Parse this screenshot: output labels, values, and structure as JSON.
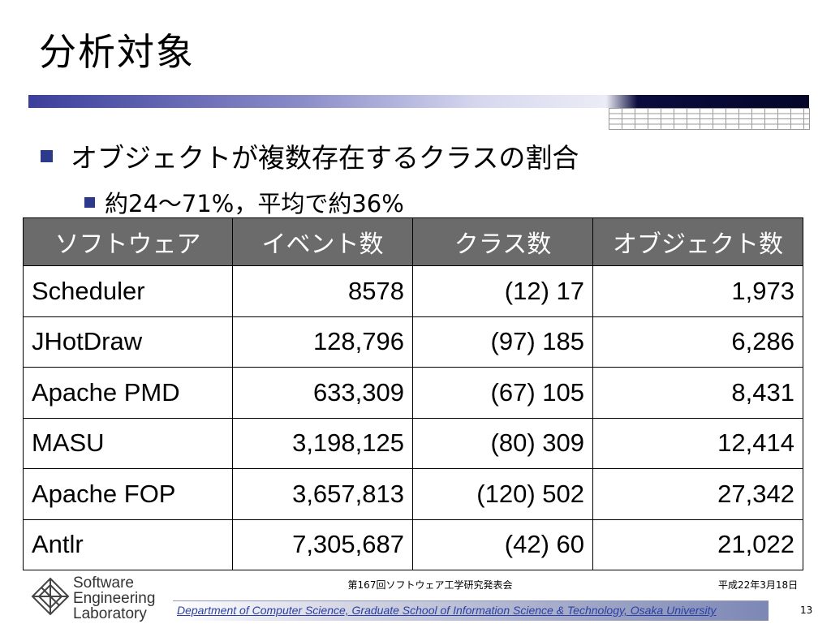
{
  "slide": {
    "title": "分析対象",
    "bullets": [
      {
        "text": "オブジェクトが複数存在するクラスの割合"
      },
      {
        "text": "約24～71%，平均で約36%"
      }
    ]
  },
  "table": {
    "headers": [
      "ソフトウェア",
      "イベント数",
      "クラス数",
      "オブジェクト数"
    ],
    "rows": [
      [
        "Scheduler",
        "8578",
        "(12) 17",
        "1,973"
      ],
      [
        "JHotDraw",
        "128,796",
        "(97) 185",
        "6,286"
      ],
      [
        "Apache PMD",
        "633,309",
        "(67) 105",
        "8,431"
      ],
      [
        "MASU",
        "3,198,125",
        "(80) 309",
        "12,414"
      ],
      [
        "Apache FOP",
        "3,657,813",
        "(120) 502",
        "27,342"
      ],
      [
        "Antlr",
        "7,305,687",
        "(42) 60",
        "21,022"
      ]
    ]
  },
  "footer": {
    "logo_lines": [
      "Software",
      "Engineering",
      "Laboratory"
    ],
    "conference": "第167回ソフトウェア工学研究発表会",
    "date": "平成22年3月18日",
    "department": "Department of Computer Science, Graduate School of Information Science & Technology, Osaka University",
    "page_number": "13"
  },
  "colors": {
    "bullet": "#2d3a8c",
    "table_header_bg": "#6b6b6b",
    "footer_link": "#2a3fa8"
  }
}
